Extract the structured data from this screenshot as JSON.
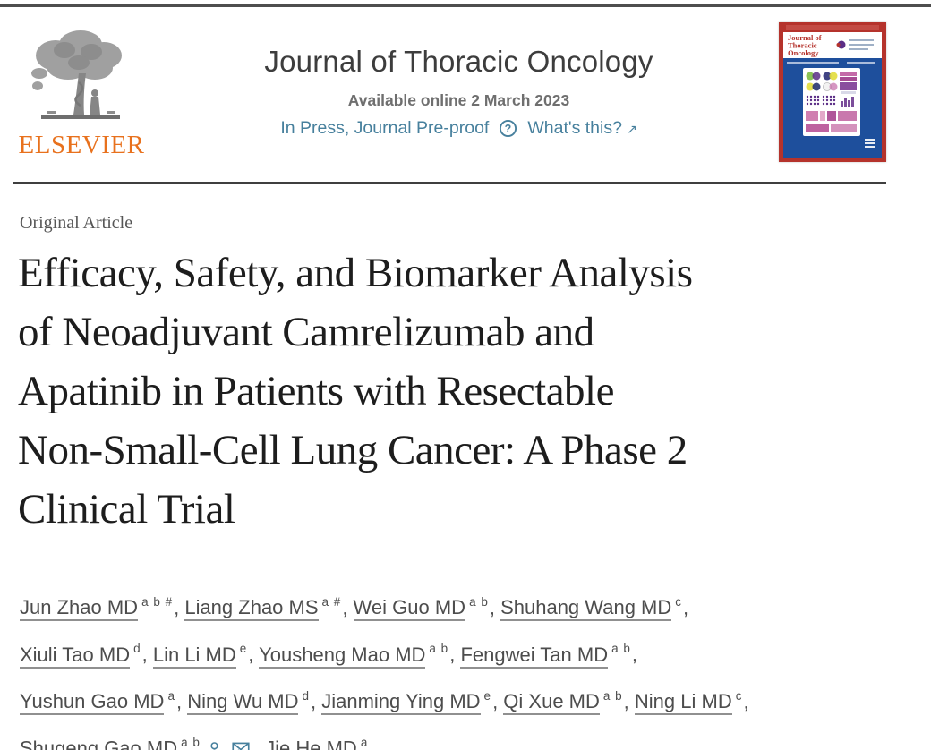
{
  "colors": {
    "elsevier_orange": "#E8711D",
    "link_teal": "#47809D",
    "cover_frame_red": "#B5332C",
    "cover_body_blue": "#1E4F9C",
    "divider_gray": "#3f3f3f"
  },
  "header": {
    "elsevier_wordmark": "ELSEVIER",
    "journal_title": "Journal of Thoracic Oncology",
    "available_online": "Available online 2 March 2023",
    "in_press": "In Press, Journal Pre-proof",
    "whats_this": "What's this?",
    "external_arrow": "↗",
    "question_icon_glyph": "?"
  },
  "cover": {
    "title_lines": [
      "Journal of",
      "Thoracic",
      "Oncology"
    ]
  },
  "article": {
    "category": "Original Article",
    "title_lines": [
      "Efficacy, Safety, and Biomarker Analysis",
      "of Neoadjuvant Camrelizumab and",
      "Apatinib in Patients with Resectable",
      "Non-Small-Cell Lung Cancer: A Phase 2",
      "Clinical Trial"
    ],
    "authors": [
      {
        "name": "Jun Zhao MD",
        "sup": "a b #",
        "linked": true,
        "sep": ", "
      },
      {
        "name": "Liang Zhao MS",
        "sup": "a #",
        "linked": true,
        "sep": ", "
      },
      {
        "name": "Wei Guo MD",
        "sup": "a b",
        "linked": true,
        "sep": ", "
      },
      {
        "name": "Shuhang Wang MD",
        "sup": "c",
        "linked": true,
        "sep": ",",
        "break_after": true
      },
      {
        "name": "Xiuli Tao MD",
        "sup": "d",
        "linked": true,
        "sep": ", "
      },
      {
        "name": "Lin Li MD",
        "sup": "e",
        "linked": true,
        "sep": ", "
      },
      {
        "name": "Yousheng Mao MD",
        "sup": "a b",
        "linked": true,
        "sep": ", "
      },
      {
        "name": "Fengwei Tan MD",
        "sup": "a b",
        "linked": true,
        "sep": ",",
        "break_after": true
      },
      {
        "name": "Yushun Gao MD",
        "sup": "a",
        "linked": true,
        "sep": ", "
      },
      {
        "name": "Ning Wu MD",
        "sup": "d",
        "linked": true,
        "sep": ", "
      },
      {
        "name": "Jianming Ying MD",
        "sup": "e",
        "linked": true,
        "sep": ", "
      },
      {
        "name": "Qi Xue MD",
        "sup": "a b",
        "linked": true,
        "sep": ", "
      },
      {
        "name": "Ning Li MD",
        "sup": "c",
        "linked": true,
        "sep": ",",
        "break_after": true
      },
      {
        "name": "Shugeng Gao MD",
        "sup": "a b",
        "linked": false,
        "icons": [
          "person-icon",
          "envelope-icon"
        ],
        "sep": ", "
      },
      {
        "name": "Jie He MD",
        "sup": "a",
        "linked": false,
        "sep": ""
      }
    ]
  }
}
